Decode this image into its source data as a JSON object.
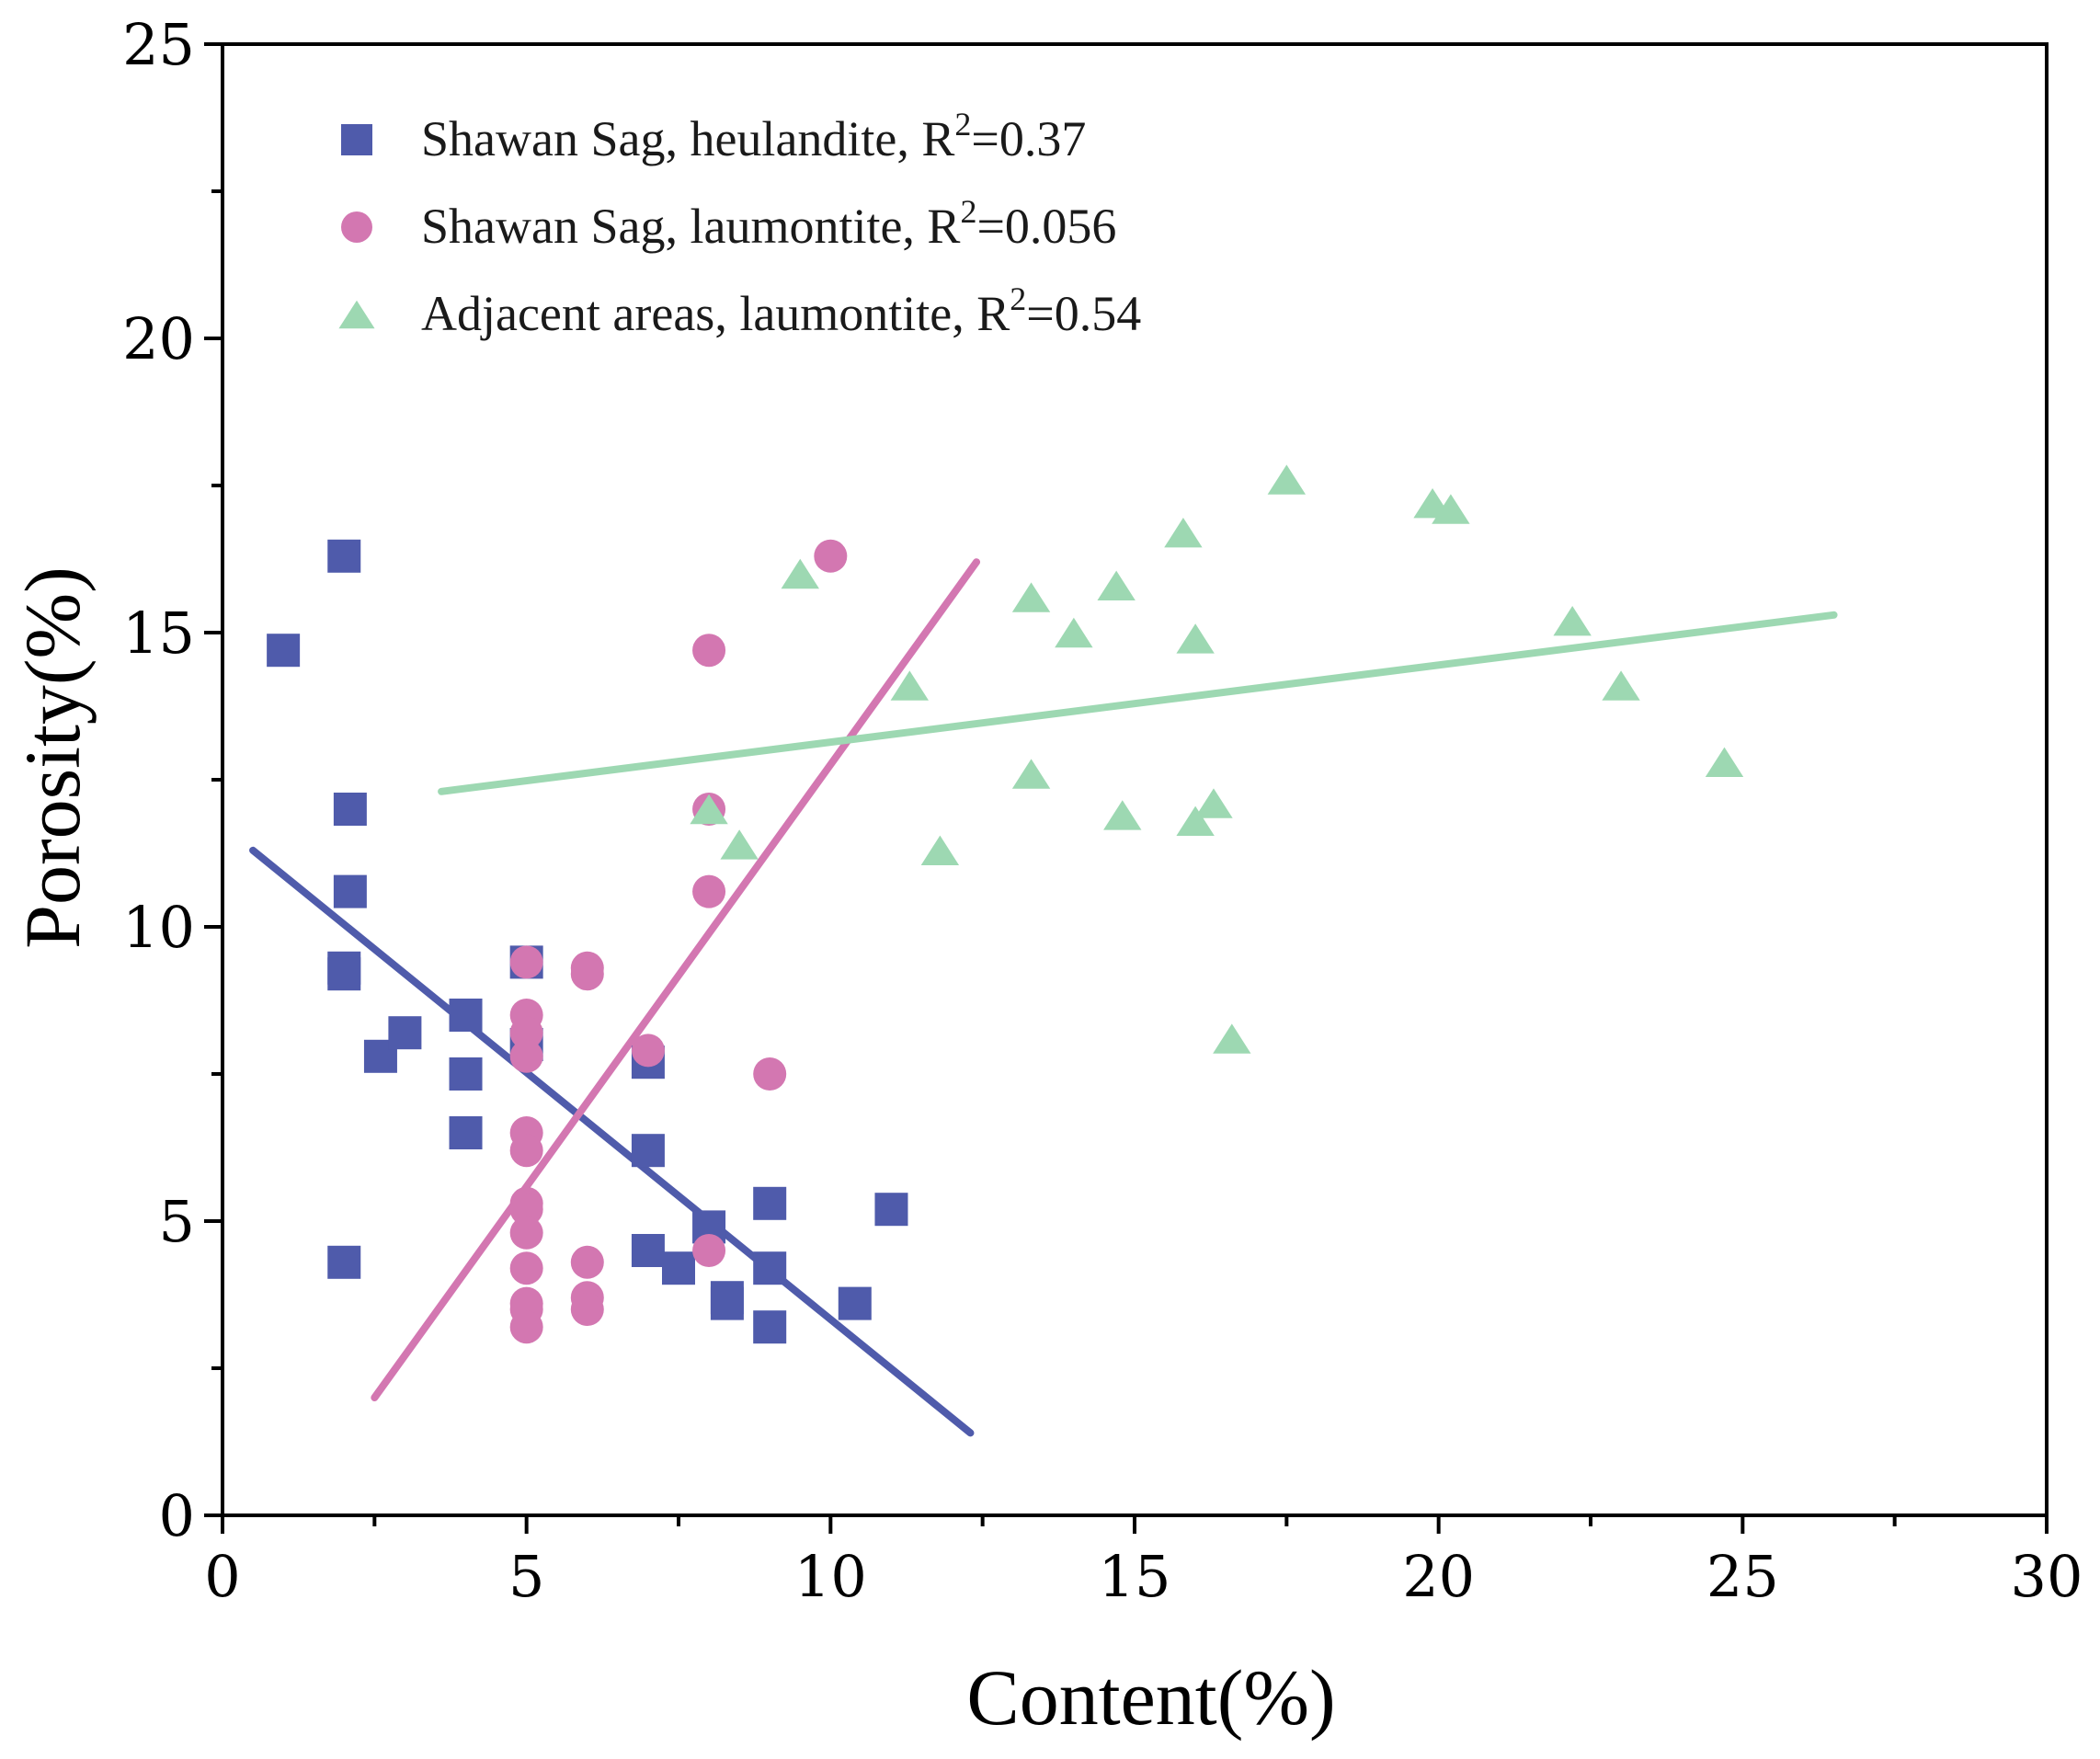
{
  "chart_data": {
    "type": "scatter",
    "title": "",
    "xlabel": "Content(%)",
    "ylabel": "Porosity(%)",
    "xlim": [
      0,
      30
    ],
    "ylim": [
      0,
      25
    ],
    "x_ticks": [
      0,
      5,
      10,
      15,
      20,
      25,
      30
    ],
    "y_ticks": [
      0,
      5,
      10,
      15,
      20,
      25
    ],
    "grid": false,
    "legend_position": "top-left",
    "series": [
      {
        "name": "Shawan Sag, heulandite",
        "legend_name": "Shawan Sag",
        "legend_mineral": ", heulandite, R",
        "legend_sup": "2",
        "legend_value": "=0.37",
        "r2": 0.37,
        "marker": "square",
        "color": "#4f5bab",
        "points": [
          [
            1,
            14.7
          ],
          [
            2,
            16.3
          ],
          [
            2.1,
            12.0
          ],
          [
            2.1,
            10.6
          ],
          [
            2,
            9.3
          ],
          [
            2,
            9.2
          ],
          [
            2.6,
            7.8
          ],
          [
            3,
            8.2
          ],
          [
            4,
            8.5
          ],
          [
            4,
            7.5
          ],
          [
            4,
            6.5
          ],
          [
            2,
            4.3
          ],
          [
            5,
            9.4
          ],
          [
            5,
            8.0
          ],
          [
            7,
            7.7
          ],
          [
            7,
            6.2
          ],
          [
            7,
            4.5
          ],
          [
            7.5,
            4.2
          ],
          [
            8,
            4.9
          ],
          [
            8.3,
            3.7
          ],
          [
            8.3,
            3.6
          ],
          [
            9,
            5.3
          ],
          [
            9,
            4.2
          ],
          [
            9,
            3.2
          ],
          [
            10.4,
            3.6
          ],
          [
            11,
            5.2
          ]
        ],
        "trendline": [
          [
            0.5,
            11.3
          ],
          [
            12.3,
            1.4
          ]
        ]
      },
      {
        "name": "Shawan Sag, laumontite",
        "legend_name": "Shawan Sag",
        "legend_mineral": ", laumontite, R",
        "legend_sup": "2",
        "legend_value": "=0.056",
        "r2": 0.056,
        "marker": "circle",
        "color": "#d377b1",
        "points": [
          [
            5,
            9.4
          ],
          [
            5,
            8.5
          ],
          [
            5,
            8.2
          ],
          [
            5,
            7.8
          ],
          [
            5,
            6.5
          ],
          [
            5,
            6.2
          ],
          [
            5,
            5.3
          ],
          [
            5,
            5.2
          ],
          [
            5,
            4.8
          ],
          [
            5,
            4.2
          ],
          [
            5,
            3.6
          ],
          [
            5,
            3.5
          ],
          [
            5,
            3.2
          ],
          [
            6,
            9.3
          ],
          [
            6,
            9.2
          ],
          [
            6,
            4.3
          ],
          [
            6,
            3.7
          ],
          [
            6,
            3.5
          ],
          [
            7,
            7.9
          ],
          [
            8,
            14.7
          ],
          [
            8,
            12.0
          ],
          [
            8,
            10.6
          ],
          [
            8,
            4.5
          ],
          [
            9,
            7.5
          ],
          [
            10,
            16.3
          ]
        ],
        "trendline": [
          [
            2.5,
            2.0
          ],
          [
            12.4,
            16.2
          ]
        ]
      },
      {
        "name": "Adjacent areas, laumontite",
        "legend_name": "Adjacent areas",
        "legend_mineral": ", laumontite, R",
        "legend_sup": "2",
        "legend_value": "=0.54",
        "r2": 0.54,
        "marker": "triangle",
        "color": "#9dd8b2",
        "points": [
          [
            8,
            12.0
          ],
          [
            8.5,
            11.4
          ],
          [
            9.5,
            16.0
          ],
          [
            11.3,
            14.1
          ],
          [
            11.8,
            11.3
          ],
          [
            13.3,
            15.6
          ],
          [
            13.3,
            12.6
          ],
          [
            14,
            15.0
          ],
          [
            14.7,
            15.8
          ],
          [
            14.8,
            11.9
          ],
          [
            15.8,
            16.7
          ],
          [
            16,
            14.9
          ],
          [
            16,
            11.8
          ],
          [
            16.3,
            12.1
          ],
          [
            16.6,
            8.1
          ],
          [
            17.5,
            17.6
          ],
          [
            19.9,
            17.2
          ],
          [
            20.2,
            17.1
          ],
          [
            22.2,
            15.2
          ],
          [
            23,
            14.1
          ],
          [
            24.7,
            12.8
          ]
        ],
        "trendline": [
          [
            3.6,
            12.3
          ],
          [
            26.5,
            15.3
          ]
        ]
      }
    ]
  }
}
